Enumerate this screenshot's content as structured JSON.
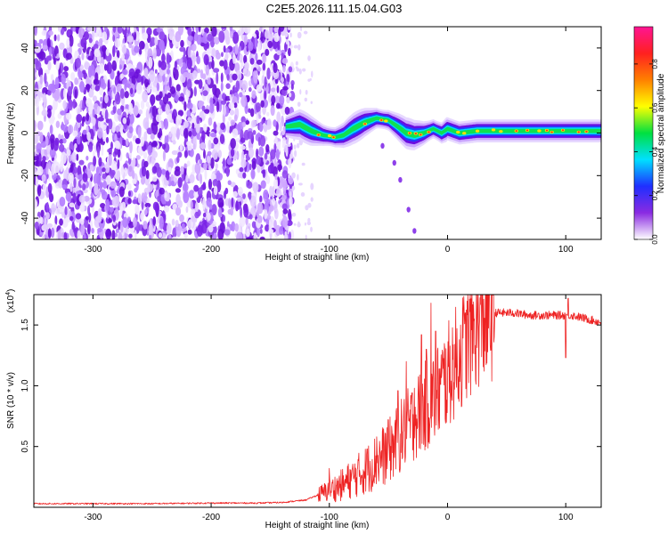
{
  "figure": {
    "title": "C2E5.2026.111.15.04.G03"
  },
  "chart_data": [
    {
      "type": "heatmap",
      "name": "spectrogram",
      "xlabel": "Height of straight line (km)",
      "ylabel": "Frequency (Hz)",
      "xlim": [
        -350,
        130
      ],
      "ylim": [
        -50,
        50
      ],
      "xticks": [
        -300,
        -200,
        -100,
        0,
        100
      ],
      "xtick_labels": [
        "-300",
        "-200",
        "-100",
        "0",
        "100"
      ],
      "yticks": [
        -40,
        -20,
        0,
        20,
        40
      ],
      "ytick_labels": [
        "-40",
        "-20",
        "0",
        "20",
        "40"
      ],
      "noise_region_x": [
        -350,
        -137
      ],
      "signal_region_x": [
        -137,
        130
      ],
      "signal_track": [
        [
          -137,
          3
        ],
        [
          -125,
          4
        ],
        [
          -115,
          1
        ],
        [
          -105,
          -1
        ],
        [
          -95,
          -2
        ],
        [
          -88,
          -1
        ],
        [
          -80,
          2
        ],
        [
          -70,
          5
        ],
        [
          -60,
          7
        ],
        [
          -50,
          6
        ],
        [
          -42,
          3
        ],
        [
          -35,
          0
        ],
        [
          -28,
          -1
        ],
        [
          -20,
          0
        ],
        [
          -12,
          2
        ],
        [
          -5,
          0
        ],
        [
          0,
          2
        ],
        [
          10,
          0
        ],
        [
          25,
          1
        ],
        [
          50,
          1
        ],
        [
          80,
          1
        ],
        [
          110,
          1
        ],
        [
          130,
          1
        ]
      ],
      "branch_track": [
        [
          -55,
          -6
        ],
        [
          -45,
          -14
        ],
        [
          -40,
          -22
        ],
        [
          -33,
          -36
        ],
        [
          -28,
          -46
        ]
      ],
      "colorbar": {
        "label": "Normalized spectral amplitude",
        "range": [
          0,
          0.97
        ],
        "ticks": [
          0.0,
          0.2,
          0.4,
          0.6,
          0.8
        ],
        "tick_labels": [
          "0.0",
          "0.2",
          "0.4",
          "0.6",
          "0.8"
        ],
        "colors": [
          "#ffffff",
          "#8a2be2",
          "#1f2fff",
          "#00e0ff",
          "#00e040",
          "#ffff00",
          "#ff8000",
          "#ff2020",
          "#ff1493"
        ]
      }
    },
    {
      "type": "line",
      "name": "snr",
      "xlabel": "Height of straight line (km)",
      "ylabel": "SNR (10 * v/v)",
      "multiplier": "(x10",
      "multiplier_exp": "4",
      "multiplier_close": ")",
      "xlim": [
        -350,
        130
      ],
      "ylim": [
        0,
        1.75
      ],
      "xticks": [
        -300,
        -200,
        -100,
        0,
        100
      ],
      "xtick_labels": [
        "-300",
        "-200",
        "-100",
        "0",
        "100"
      ],
      "yticks": [
        0.5,
        1.0,
        1.5
      ],
      "ytick_labels": [
        "0.5",
        "1.0",
        "1.5"
      ],
      "color": "#ee2222",
      "envelope": [
        [
          -350,
          0.03
        ],
        [
          -300,
          0.03
        ],
        [
          -250,
          0.03
        ],
        [
          -200,
          0.035
        ],
        [
          -160,
          0.035
        ],
        [
          -140,
          0.04
        ],
        [
          -120,
          0.06
        ],
        [
          -110,
          0.1
        ],
        [
          -100,
          0.14
        ],
        [
          -90,
          0.18
        ],
        [
          -80,
          0.24
        ],
        [
          -70,
          0.3
        ],
        [
          -60,
          0.38
        ],
        [
          -50,
          0.46
        ],
        [
          -40,
          0.58
        ],
        [
          -30,
          0.7
        ],
        [
          -20,
          0.82
        ],
        [
          -10,
          0.92
        ],
        [
          0,
          1.08
        ],
        [
          10,
          1.25
        ],
        [
          20,
          1.42
        ],
        [
          30,
          1.55
        ],
        [
          40,
          1.6
        ],
        [
          55,
          1.6
        ],
        [
          70,
          1.58
        ],
        [
          90,
          1.58
        ],
        [
          105,
          1.58
        ],
        [
          118,
          1.55
        ],
        [
          130,
          1.52
        ]
      ],
      "spikes": [
        [
          -100,
          0.32
        ],
        [
          -88,
          0.26
        ],
        [
          -68,
          0.48
        ],
        [
          -60,
          0.58
        ],
        [
          -50,
          0.72
        ],
        [
          -42,
          0.96
        ],
        [
          -35,
          1.2
        ],
        [
          -28,
          0.98
        ],
        [
          -22,
          1.42
        ],
        [
          -18,
          1.3
        ],
        [
          -14,
          1.68
        ],
        [
          -10,
          1.45
        ],
        [
          15,
          1.6
        ],
        [
          102,
          1.72
        ],
        [
          100,
          1.23
        ]
      ]
    }
  ]
}
